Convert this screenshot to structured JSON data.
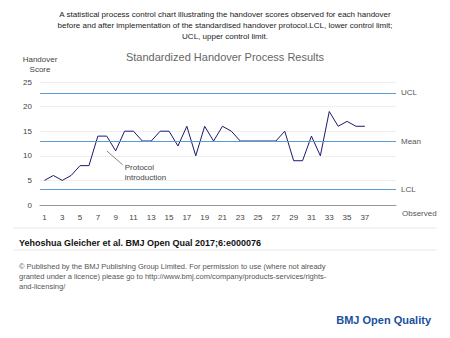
{
  "chart_data": {
    "type": "line",
    "title": "Standardized Handover Process Results",
    "subtitle": "A statistical process control chart illustrating the handover scores observed for each handover\nbefore and after implementation of the standardised handover protocol.LCL, lower control limit;\nUCL, upper control limit.",
    "x": [
      1,
      2,
      3,
      4,
      5,
      6,
      7,
      8,
      9,
      10,
      11,
      12,
      13,
      14,
      15,
      16,
      17,
      18,
      19,
      20,
      21,
      22,
      23,
      24,
      25,
      26,
      27,
      28,
      29,
      30,
      31,
      32,
      33,
      34,
      35,
      36,
      37
    ],
    "values": [
      5,
      6,
      5,
      6,
      8,
      8,
      14,
      14,
      11,
      15,
      15,
      13,
      13,
      15,
      15,
      12,
      16,
      10,
      16,
      13,
      16,
      15,
      13,
      13,
      13,
      13,
      13,
      15,
      9,
      9,
      14,
      10,
      19,
      16,
      17,
      16,
      16
    ],
    "color": "#1a1a6e",
    "control_lines": [
      {
        "label": "UCL",
        "value": 22.8,
        "color": "#5b9bd5"
      },
      {
        "label": "Mean",
        "value": 13.0,
        "color": "#5b9bd5"
      },
      {
        "label": "LCL",
        "value": 3.2,
        "color": "#5b9bd5"
      }
    ],
    "xlabel": "Observed",
    "ylabel": "Handover\nScore",
    "xlim": [
      0.5,
      40.5
    ],
    "xticks": [
      1,
      3,
      5,
      7,
      9,
      11,
      13,
      15,
      17,
      19,
      21,
      23,
      25,
      27,
      29,
      31,
      33,
      35,
      37
    ],
    "ylim": [
      0,
      25
    ],
    "yticks": [
      0,
      5,
      10,
      15,
      20,
      25
    ],
    "grid": true,
    "annotations": [
      {
        "text": "Protocol\nintroduction",
        "x": 8,
        "y": 11
      }
    ],
    "citation": "Yehoshua Gleicher et al. BMJ Open Qual 2017;6:e000076",
    "copyright": "© Published by the BMJ Publishing Group Limited. For permission to use (where not already\ngranted under a licence) please go to http://www.bmj.com/company/products-services/rights-\nand-licensing/",
    "footer": "BMJ Open Quality"
  }
}
